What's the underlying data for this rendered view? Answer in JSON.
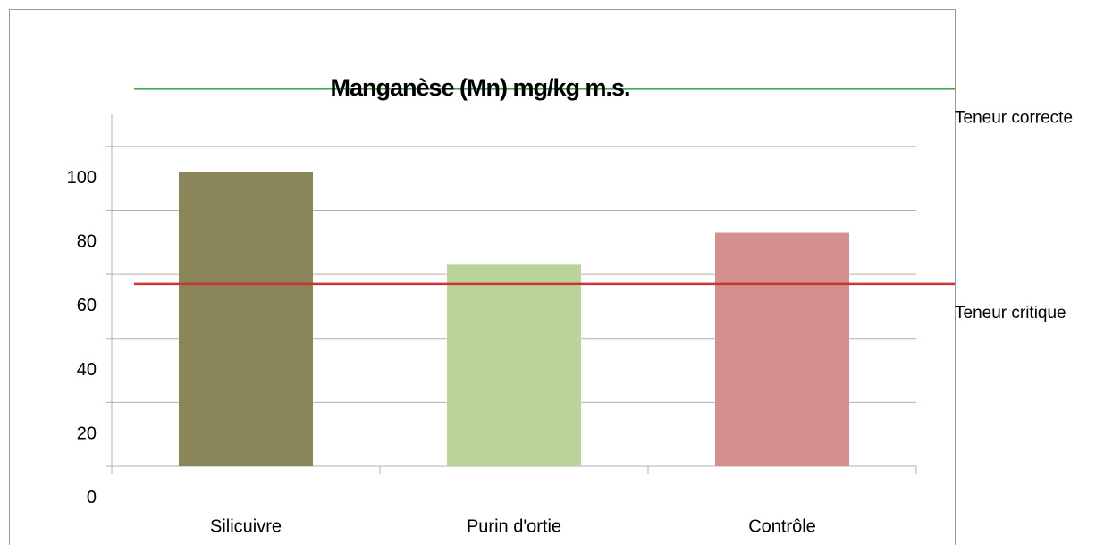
{
  "chart_data": {
    "type": "bar",
    "title": "Manganèse (Mn) mg/kg m.s.",
    "categories": [
      "Silicuivre",
      "Purin d'ortie",
      "Contrôle"
    ],
    "values": [
      92,
      63,
      73
    ],
    "colors": [
      "#8b865a",
      "#b9d39b",
      "#d48f8f"
    ],
    "ylim": [
      0,
      110
    ],
    "yticks": [
      0,
      20,
      40,
      60,
      80,
      100
    ],
    "grid": true,
    "reference_lines": [
      {
        "name": "Teneur correcte",
        "value": 118,
        "color": "#3daa55"
      },
      {
        "name": "Teneur critique",
        "value": 57,
        "color": "#cc3333"
      }
    ]
  }
}
